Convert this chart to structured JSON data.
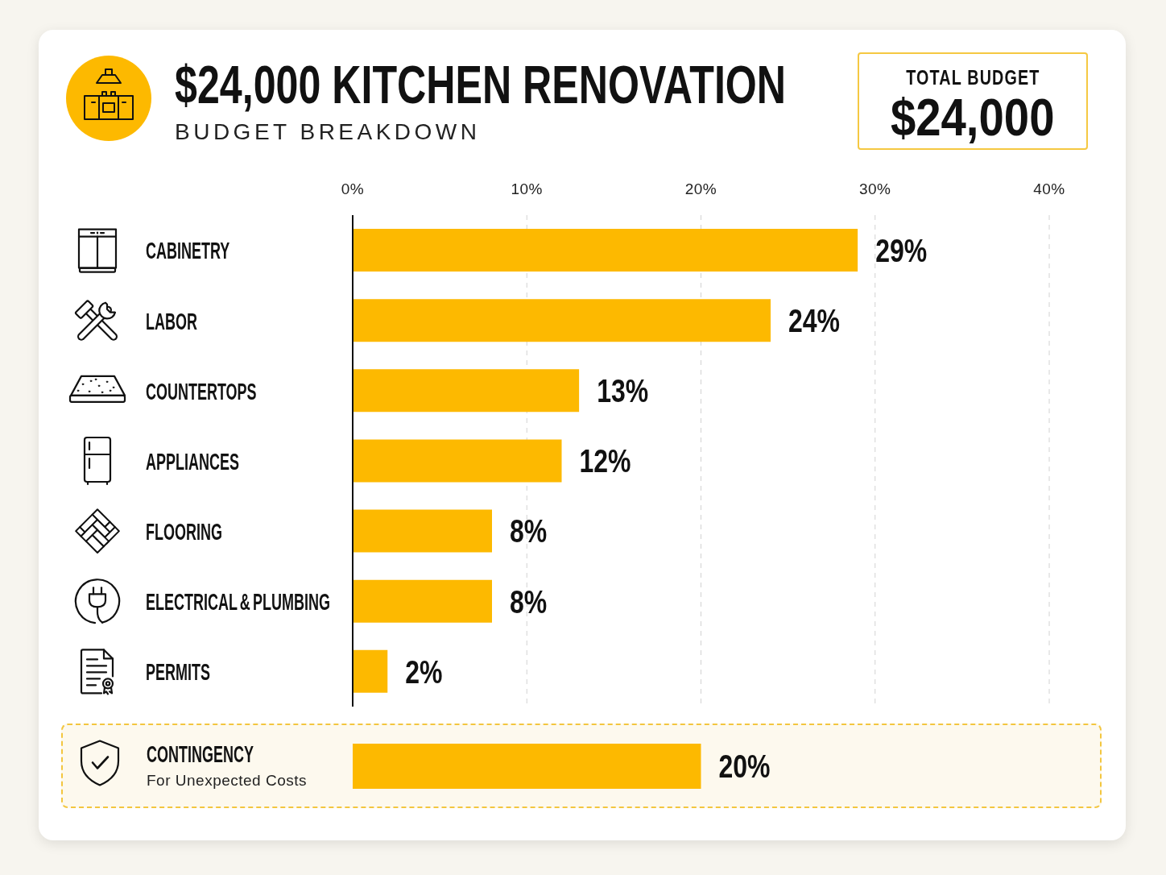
{
  "chart_data": [
    {
      "type": "bar",
      "title": "$24,000 KITCHEN RENOVATION",
      "subtitle": "BUDGET BREAKDOWN",
      "annotations": [
        "TOTAL BUDGET",
        "$24,000"
      ],
      "orientation": "horizontal",
      "categories": [
        "CABINETRY",
        "LABOR",
        "COUNTERTOPS",
        "APPLIANCES",
        "FLOORING",
        "ELECTRICAL & PLUMBING",
        "PERMITS"
      ],
      "values": [
        29,
        24,
        13,
        12,
        8,
        8,
        2
      ],
      "value_labels": [
        "29%",
        "24%",
        "13%",
        "12%",
        "8%",
        "8%",
        "2%"
      ],
      "color": "#fdb900",
      "xlim": [
        0,
        40
      ],
      "xticks": [
        {
          "value": 0,
          "label": "0%"
        },
        {
          "value": 10,
          "label": "10%"
        },
        {
          "value": 20,
          "label": "20%"
        },
        {
          "value": 30,
          "label": "30%"
        },
        {
          "value": 40,
          "label": "40%"
        }
      ],
      "grid": "x"
    },
    {
      "type": "bar",
      "orientation": "horizontal",
      "categories": [
        "CONTINGENCY"
      ],
      "annotations": [
        "For Unexpected Costs"
      ],
      "values": [
        20
      ],
      "value_labels": [
        "20%"
      ],
      "color": "#fdb900",
      "xlim": [
        0,
        40
      ],
      "tick_labels": "y"
    }
  ]
}
